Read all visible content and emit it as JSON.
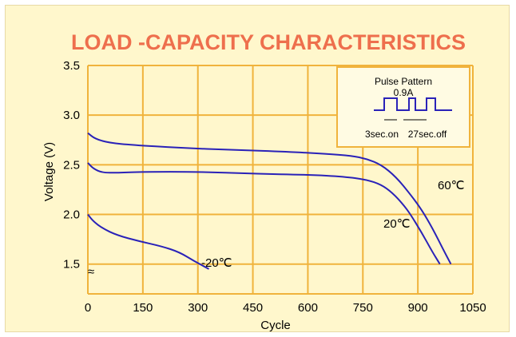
{
  "chart_data": {
    "type": "line",
    "title": "LOAD -CAPACITY CHARACTERISTICS",
    "xlabel": "Cycle",
    "ylabel": "Voltage (V)",
    "xlim": [
      0,
      1050
    ],
    "ylim": [
      1.2,
      3.5
    ],
    "xticks": [
      "0",
      "150",
      "300",
      "450",
      "600",
      "750",
      "900",
      "1050"
    ],
    "yticks": [
      "1.5",
      "2.0",
      "2.5",
      "3.0",
      "3.5"
    ],
    "grid": true,
    "axis_break": "≈",
    "series": [
      {
        "name": "60℃",
        "x": [
          0,
          20,
          60,
          120,
          250,
          400,
          550,
          650,
          720,
          760,
          800,
          840,
          880,
          910,
          940,
          970,
          990
        ],
        "y": [
          2.82,
          2.76,
          2.72,
          2.7,
          2.67,
          2.65,
          2.63,
          2.61,
          2.59,
          2.56,
          2.5,
          2.38,
          2.2,
          2.05,
          1.86,
          1.64,
          1.5
        ]
      },
      {
        "name": "20℃",
        "x": [
          0,
          15,
          40,
          80,
          150,
          300,
          450,
          600,
          700,
          760,
          800,
          830,
          860,
          880,
          910,
          940,
          960
        ],
        "y": [
          2.52,
          2.46,
          2.42,
          2.42,
          2.43,
          2.43,
          2.41,
          2.4,
          2.38,
          2.35,
          2.3,
          2.22,
          2.1,
          2.0,
          1.82,
          1.62,
          1.5
        ]
      },
      {
        "name": "-20℃",
        "x": [
          0,
          15,
          40,
          80,
          140,
          200,
          250,
          290,
          330
        ],
        "y": [
          2.0,
          1.93,
          1.86,
          1.79,
          1.73,
          1.68,
          1.62,
          1.53,
          1.45
        ]
      }
    ],
    "inset": {
      "title": "Pulse Pattern",
      "amplitude": "0.9A",
      "on_label": "3sec.on",
      "off_label": "27sec.off"
    }
  },
  "colors": {
    "title": "#ee6f4d",
    "grid": "#f0b33c",
    "curve": "#2a22b8",
    "background": "#fff7cc",
    "inset_bg": "#fffbe3"
  }
}
